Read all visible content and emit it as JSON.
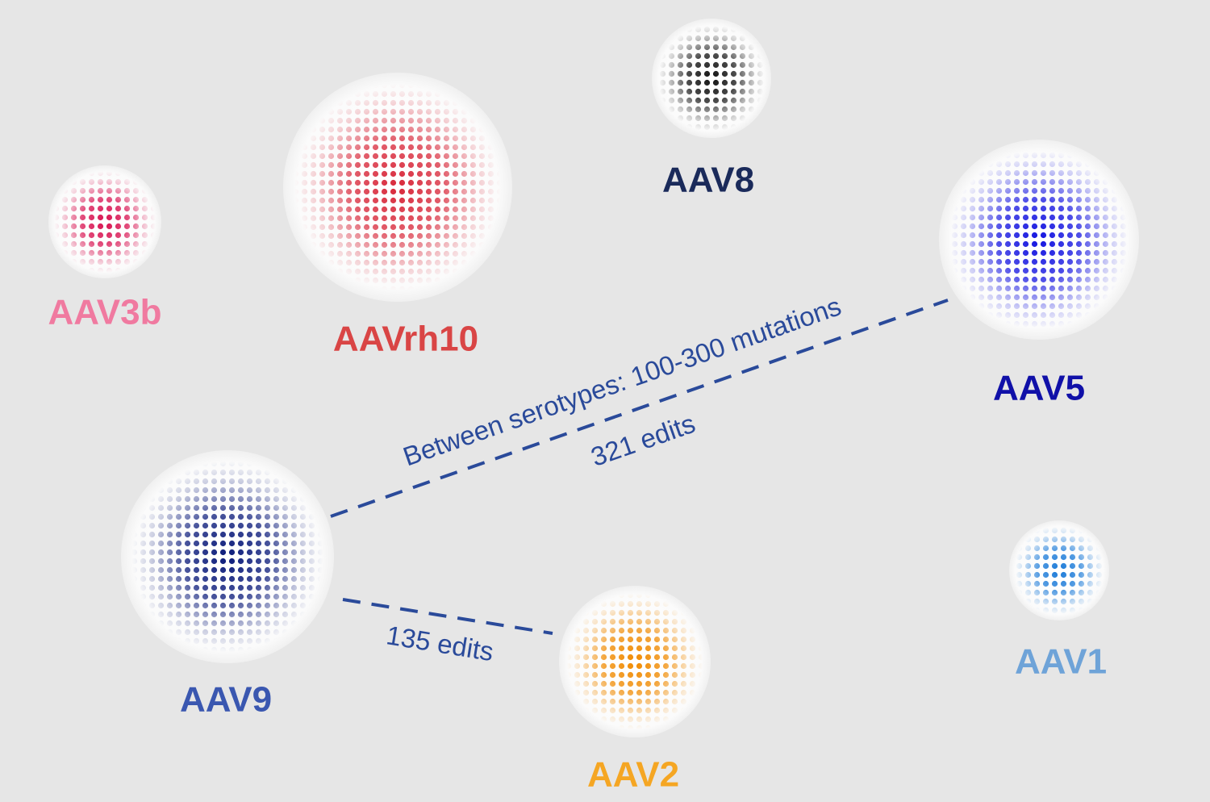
{
  "nodes": [
    {
      "label": "AAV3b"
    },
    {
      "label": "AAVrh10"
    },
    {
      "label": "AAV8"
    },
    {
      "label": "AAV5"
    },
    {
      "label": "AAV9"
    },
    {
      "label": "AAV2"
    },
    {
      "label": "AAV1"
    }
  ],
  "edges": [
    {
      "from": "AAV9",
      "to": "AAV5",
      "label": "321 edits",
      "note": "Between serotypes: 100-300 mutations"
    },
    {
      "from": "AAV9",
      "to": "AAV2",
      "label": "135 edits"
    }
  ]
}
